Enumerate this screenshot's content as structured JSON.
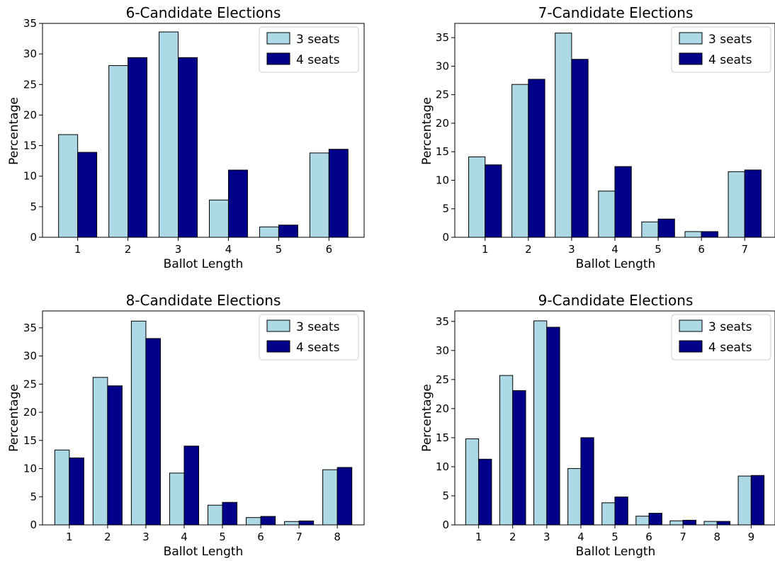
{
  "chart_data": [
    {
      "type": "bar",
      "title": "6-Candidate Elections",
      "xlabel": "Ballot Length",
      "ylabel": "Percentage",
      "categories": [
        "1",
        "2",
        "3",
        "4",
        "5",
        "6"
      ],
      "ylim": [
        0,
        35
      ],
      "yticks": [
        0,
        5,
        10,
        15,
        20,
        25,
        30,
        35
      ],
      "series": [
        {
          "name": "3 seats",
          "color": "#add8e6",
          "values": [
            16.8,
            28.1,
            33.6,
            6.1,
            1.7,
            13.8
          ]
        },
        {
          "name": "4 seats",
          "color": "#00008b",
          "values": [
            13.9,
            29.4,
            29.4,
            11.0,
            2.0,
            14.4
          ]
        }
      ],
      "legend": "top-right",
      "grid": false
    },
    {
      "type": "bar",
      "title": "7-Candidate Elections",
      "xlabel": "Ballot Length",
      "ylabel": "Percentage",
      "categories": [
        "1",
        "2",
        "3",
        "4",
        "5",
        "6",
        "7"
      ],
      "ylim": [
        0,
        37.5
      ],
      "yticks": [
        0,
        5,
        10,
        15,
        20,
        25,
        30,
        35
      ],
      "series": [
        {
          "name": "3 seats",
          "color": "#add8e6",
          "values": [
            14.1,
            26.8,
            35.8,
            8.1,
            2.7,
            1.0,
            11.5
          ]
        },
        {
          "name": "4 seats",
          "color": "#00008b",
          "values": [
            12.7,
            27.7,
            31.2,
            12.4,
            3.2,
            1.0,
            11.8
          ]
        }
      ],
      "legend": "top-right",
      "grid": false
    },
    {
      "type": "bar",
      "title": "8-Candidate Elections",
      "xlabel": "Ballot Length",
      "ylabel": "Percentage",
      "categories": [
        "1",
        "2",
        "3",
        "4",
        "5",
        "6",
        "7",
        "8"
      ],
      "ylim": [
        0,
        38
      ],
      "yticks": [
        0,
        5,
        10,
        15,
        20,
        25,
        30,
        35
      ],
      "series": [
        {
          "name": "3 seats",
          "color": "#add8e6",
          "values": [
            13.3,
            26.2,
            36.2,
            9.2,
            3.5,
            1.3,
            0.6,
            9.8
          ]
        },
        {
          "name": "4 seats",
          "color": "#00008b",
          "values": [
            11.9,
            24.7,
            33.1,
            14.0,
            4.0,
            1.5,
            0.7,
            10.2
          ]
        }
      ],
      "legend": "top-right",
      "grid": false
    },
    {
      "type": "bar",
      "title": "9-Candidate Elections",
      "xlabel": "Ballot Length",
      "ylabel": "Percentage",
      "categories": [
        "1",
        "2",
        "3",
        "4",
        "5",
        "6",
        "7",
        "8",
        "9"
      ],
      "ylim": [
        0,
        36.8
      ],
      "yticks": [
        0,
        5,
        10,
        15,
        20,
        25,
        30,
        35
      ],
      "series": [
        {
          "name": "3 seats",
          "color": "#add8e6",
          "values": [
            14.8,
            25.7,
            35.1,
            9.7,
            3.8,
            1.5,
            0.7,
            0.6,
            8.4
          ]
        },
        {
          "name": "4 seats",
          "color": "#00008b",
          "values": [
            11.3,
            23.1,
            34.0,
            15.0,
            4.8,
            2.0,
            0.8,
            0.6,
            8.5
          ]
        }
      ],
      "legend": "top-right",
      "grid": false
    }
  ]
}
